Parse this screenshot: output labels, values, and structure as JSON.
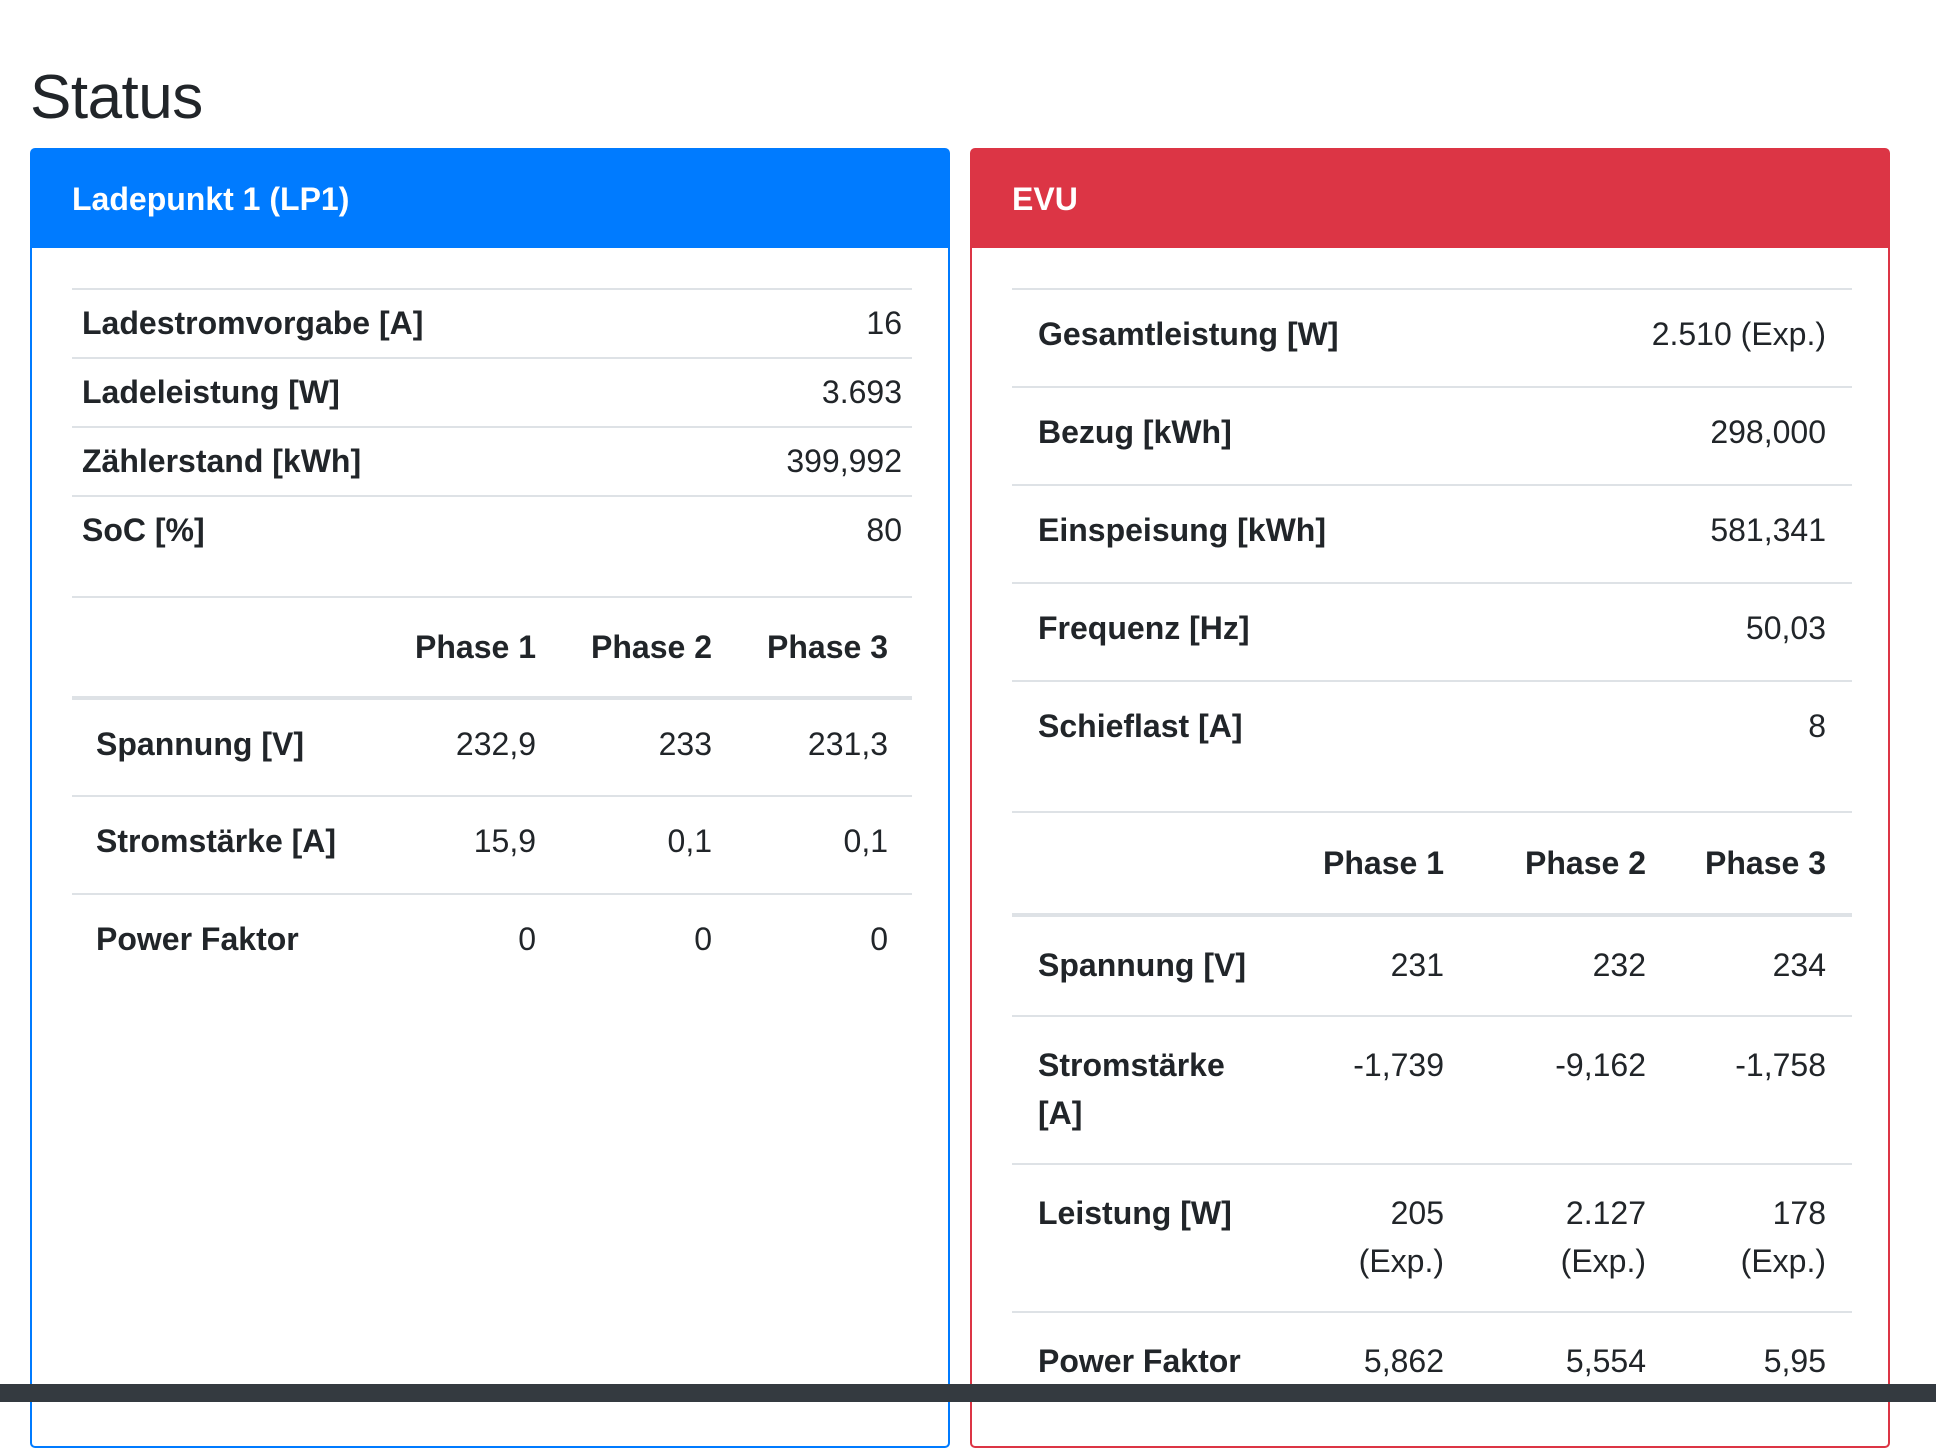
{
  "page": {
    "title": "Status"
  },
  "lp": {
    "header": "Ladepunkt 1 (LP1)",
    "info": [
      {
        "label": "Ladestromvorgabe [A]",
        "value": "16"
      },
      {
        "label": "Ladeleistung [W]",
        "value": "3.693"
      },
      {
        "label": "Zählerstand [kWh]",
        "value": "399,992"
      },
      {
        "label": "SoC [%]",
        "value": "80"
      }
    ],
    "phase_headers": [
      "Phase 1",
      "Phase 2",
      "Phase 3"
    ],
    "phase_rows": [
      {
        "label": "Spannung [V]",
        "values": [
          "232,9",
          "233",
          "231,3"
        ]
      },
      {
        "label": "Stromstärke [A]",
        "values": [
          "15,9",
          "0,1",
          "0,1"
        ]
      },
      {
        "label": "Power Faktor",
        "values": [
          "0",
          "0",
          "0"
        ]
      }
    ]
  },
  "evu": {
    "header": "EVU",
    "info": [
      {
        "label": "Gesamtleistung [W]",
        "value": "2.510 (Exp.)"
      },
      {
        "label": "Bezug [kWh]",
        "value": "298,000"
      },
      {
        "label": "Einspeisung [kWh]",
        "value": "581,341"
      },
      {
        "label": "Frequenz [Hz]",
        "value": "50,03"
      },
      {
        "label": "Schieflast [A]",
        "value": "8"
      }
    ],
    "phase_headers": [
      "Phase 1",
      "Phase 2",
      "Phase 3"
    ],
    "phase_rows": [
      {
        "label": "Spannung [V]",
        "values": [
          "231",
          "232",
          "234"
        ]
      },
      {
        "label": "Stromstärke [A]",
        "values": [
          "-1,739",
          "-9,162",
          "-1,758"
        ]
      },
      {
        "label": "Leistung [W]",
        "values": [
          "205 (Exp.)",
          "2.127 (Exp.)",
          "178 (Exp.)"
        ]
      },
      {
        "label": "Power Faktor",
        "values": [
          "5,862",
          "5,554",
          "5,95"
        ]
      }
    ]
  },
  "colors": {
    "lp_accent": "#007bff",
    "evu_accent": "#dc3545",
    "footer": "#343a40"
  }
}
